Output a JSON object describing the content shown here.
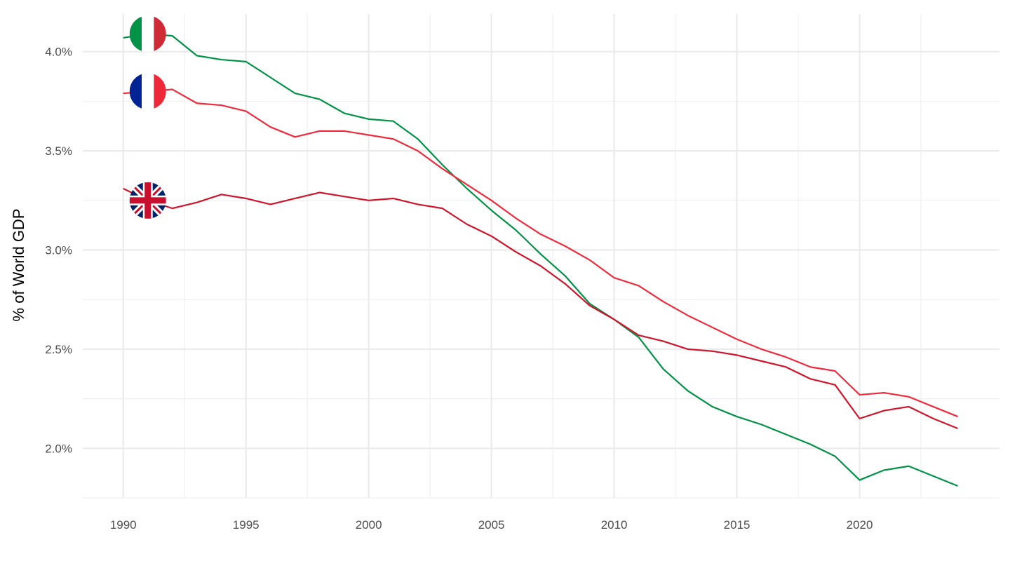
{
  "chart_data": {
    "type": "line",
    "title": "",
    "xlabel": "",
    "ylabel": "% of World GDP",
    "xlim": [
      1988.35,
      2025.7
    ],
    "ylim": [
      1.75,
      4.19
    ],
    "grid": true,
    "legend": "flags at series start",
    "x_ticks": [
      1990,
      1995,
      2000,
      2005,
      2010,
      2015,
      2020
    ],
    "x_tick_labels": [
      "1990",
      "1995",
      "2000",
      "2005",
      "2010",
      "2015",
      "2020"
    ],
    "y_ticks": [
      2.0,
      2.5,
      3.0,
      3.5,
      4.0
    ],
    "y_tick_labels": [
      "2.0%",
      "2.5%",
      "3.0%",
      "3.5%",
      "4.0%"
    ],
    "x": [
      1990,
      1991,
      1992,
      1993,
      1994,
      1995,
      1996,
      1997,
      1998,
      1999,
      2000,
      2001,
      2002,
      2003,
      2004,
      2005,
      2006,
      2007,
      2008,
      2009,
      2010,
      2011,
      2012,
      2013,
      2014,
      2015,
      2016,
      2017,
      2018,
      2019,
      2020,
      2021,
      2022,
      2023,
      2024
    ],
    "series": [
      {
        "name": "Italy",
        "flag": "italy-flag",
        "color": "#009246",
        "values": [
          4.07,
          4.09,
          4.08,
          3.98,
          3.96,
          3.95,
          3.87,
          3.79,
          3.76,
          3.69,
          3.66,
          3.65,
          3.56,
          3.43,
          3.31,
          3.2,
          3.1,
          2.98,
          2.87,
          2.73,
          2.65,
          2.56,
          2.4,
          2.29,
          2.21,
          2.16,
          2.12,
          2.07,
          2.02,
          1.96,
          1.84,
          1.89,
          1.91,
          1.86,
          1.81
        ]
      },
      {
        "name": "France",
        "flag": "france-flag",
        "color": "#EF2B3D",
        "values": [
          3.79,
          3.8,
          3.81,
          3.74,
          3.73,
          3.7,
          3.62,
          3.57,
          3.6,
          3.6,
          3.58,
          3.56,
          3.5,
          3.41,
          3.33,
          3.25,
          3.16,
          3.08,
          3.02,
          2.95,
          2.86,
          2.82,
          2.74,
          2.67,
          2.61,
          2.55,
          2.5,
          2.46,
          2.41,
          2.39,
          2.27,
          2.28,
          2.26,
          2.21,
          2.16
        ]
      },
      {
        "name": "United Kingdom",
        "flag": "uk-flag",
        "color": "#CF142B",
        "values": [
          3.31,
          3.25,
          3.21,
          3.24,
          3.28,
          3.26,
          3.23,
          3.26,
          3.29,
          3.27,
          3.25,
          3.26,
          3.23,
          3.21,
          3.13,
          3.07,
          2.99,
          2.92,
          2.83,
          2.72,
          2.65,
          2.57,
          2.54,
          2.5,
          2.49,
          2.47,
          2.44,
          2.41,
          2.35,
          2.32,
          2.15,
          2.19,
          2.21,
          2.15,
          2.1
        ]
      }
    ]
  }
}
